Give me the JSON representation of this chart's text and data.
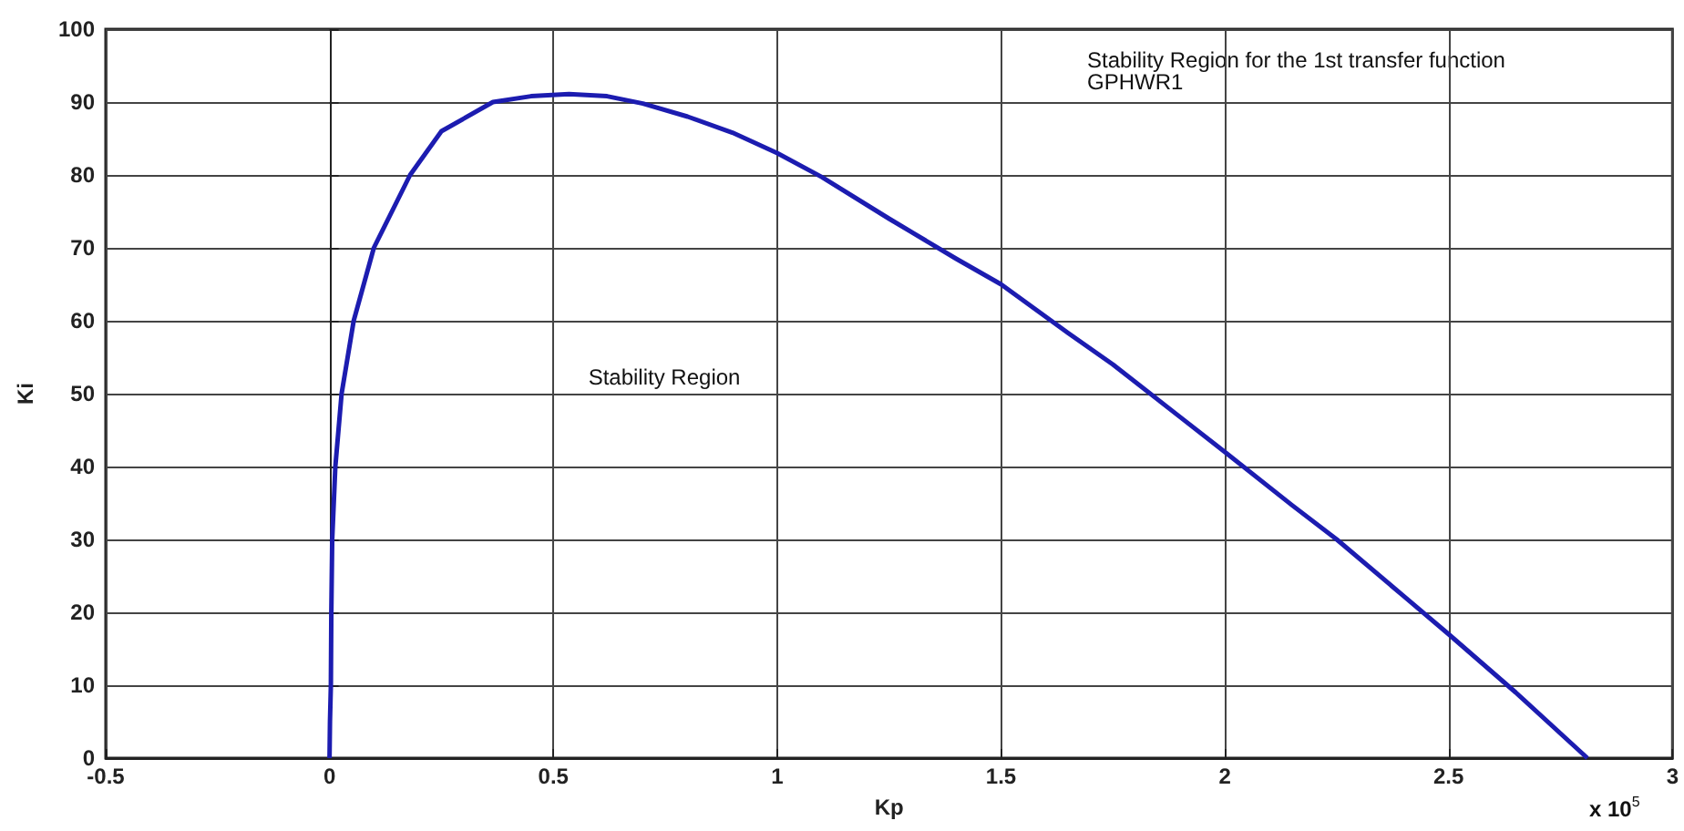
{
  "chart_data": {
    "type": "line",
    "xlabel": "Kp",
    "ylabel": "Ki",
    "annotations": [
      "Stability Region for the 1st transfer function\nGPHWR1",
      "Stability Region",
      "x 10$^{5}$"
    ],
    "series": [
      {
        "color": "#1c1cb0",
        "x": [
          0,
          0.001,
          0.003,
          0.004,
          0.006,
          0.013,
          0.027,
          0.054,
          0.099,
          0.18,
          0.25,
          0.365,
          0.45,
          0.535,
          0.62,
          0.7,
          0.8,
          0.9,
          1,
          1.1,
          1.25,
          1.4,
          1.5,
          1.65,
          1.75,
          1.9,
          2,
          2.15,
          2.25,
          2.4,
          2.5,
          2.65,
          2.81
        ],
        "values": [
          0,
          5,
          10,
          20,
          30,
          40,
          50,
          60,
          70,
          80,
          86,
          90,
          90.8,
          91.1,
          90.8,
          89.8,
          88,
          85.8,
          83,
          79.7,
          74,
          68.5,
          65,
          58.3,
          54,
          46.8,
          42,
          34.7,
          30,
          22.2,
          17,
          9,
          0
        ]
      }
    ],
    "xlim": [
      -0.5,
      3
    ],
    "xticks": [
      -0.5,
      0,
      0.5,
      1,
      1.5,
      2,
      2.5,
      3
    ],
    "ylim": [
      0,
      100
    ],
    "yticks": [
      0,
      10,
      20,
      30,
      40,
      50,
      60,
      70,
      80,
      90,
      100
    ],
    "grid": true,
    "marker": "none",
    "line_style": "solid"
  }
}
